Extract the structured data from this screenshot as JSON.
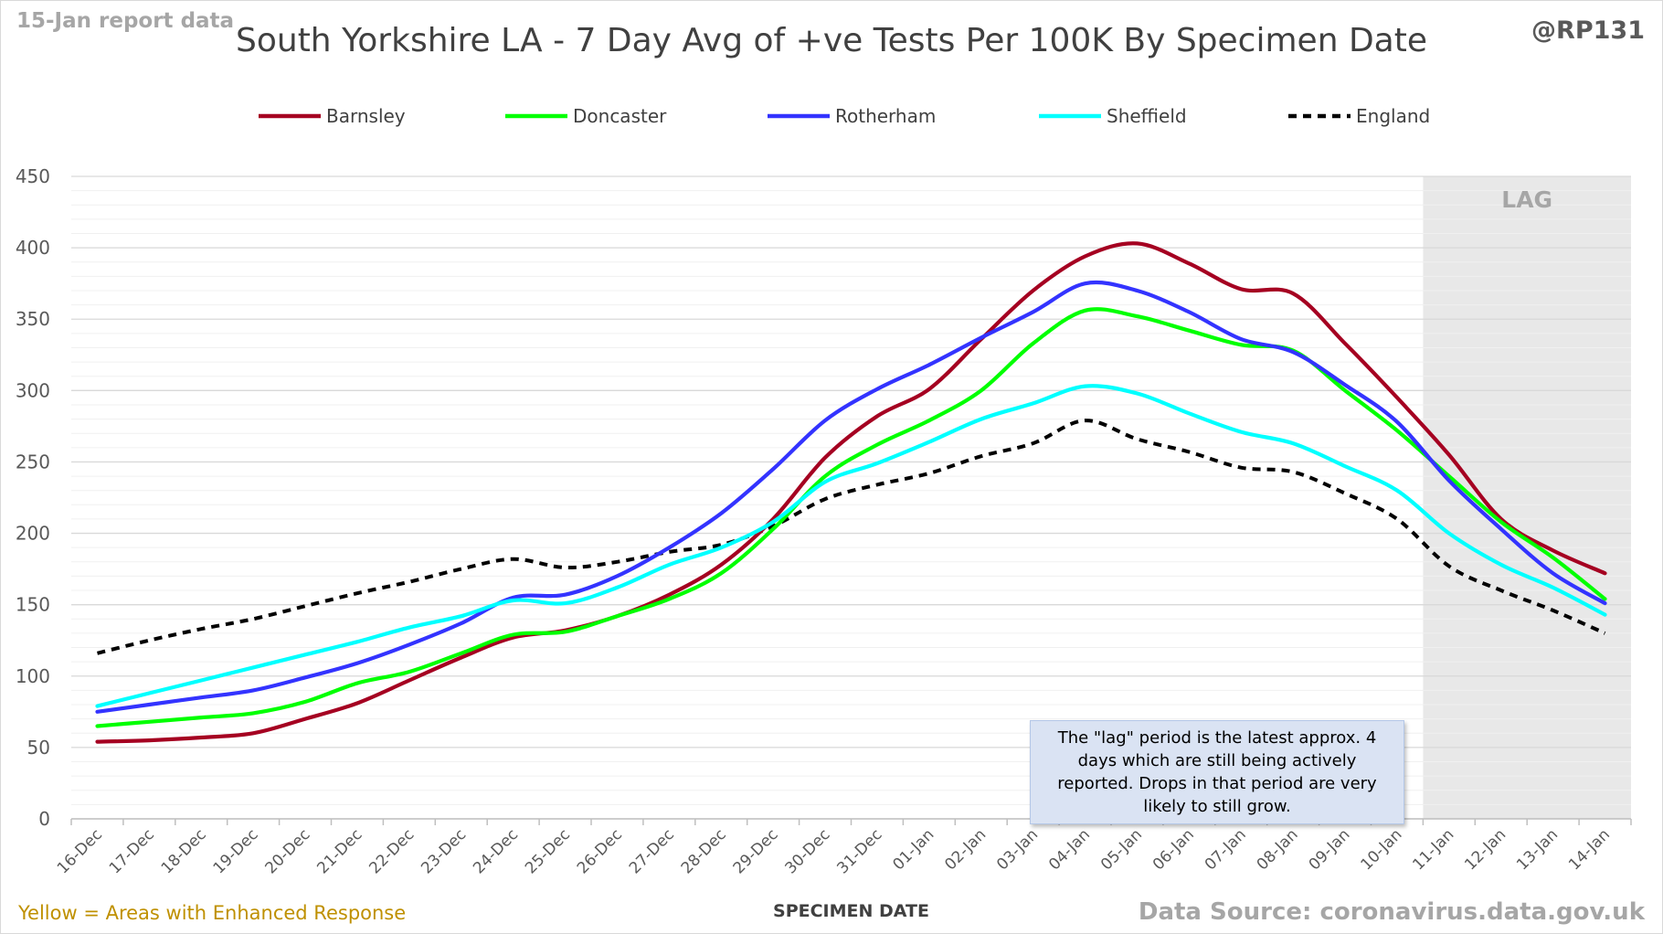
{
  "header": {
    "report_label": "15-Jan report data",
    "author_handle": "@RP131",
    "title": "South Yorkshire LA - 7 Day Avg of +ve Tests Per 100K By Specimen Date"
  },
  "footer": {
    "enhanced_note": "Yellow = Areas with Enhanced Response",
    "source": "Data Source: coronavirus.data.gov.uk"
  },
  "annotation": {
    "lag_note": "The \"lag\" period is the latest approx. 4 days which are still being actively reported. Drops in that period are very likely to still grow."
  },
  "colors": {
    "Barnsley": "#a50021",
    "Doncaster": "#00ff00",
    "Rotherham": "#3333ff",
    "Sheffield": "#00ffff",
    "England": "#000000",
    "lag_shade": "#e8e8e8",
    "grid_major": "#d9d9d9",
    "grid_minor": "#f0f0f0"
  },
  "chart_data": {
    "type": "line",
    "title": "South Yorkshire LA - 7 Day Avg of +ve Tests Per 100K By Specimen Date",
    "xlabel": "SPECIMEN DATE",
    "ylabel": "",
    "ylim": [
      0,
      450
    ],
    "yticks": [
      0,
      50,
      100,
      150,
      200,
      250,
      300,
      350,
      400,
      450
    ],
    "grid": true,
    "legend_position": "top",
    "lag_region": {
      "label": "LAG",
      "from": "11-Jan",
      "to": "14-Jan"
    },
    "x": [
      "16-Dec",
      "17-Dec",
      "18-Dec",
      "19-Dec",
      "20-Dec",
      "21-Dec",
      "22-Dec",
      "23-Dec",
      "24-Dec",
      "25-Dec",
      "26-Dec",
      "27-Dec",
      "28-Dec",
      "29-Dec",
      "30-Dec",
      "31-Dec",
      "01-Jan",
      "02-Jan",
      "03-Jan",
      "04-Jan",
      "05-Jan",
      "06-Jan",
      "07-Jan",
      "08-Jan",
      "09-Jan",
      "10-Jan",
      "11-Jan",
      "12-Jan",
      "13-Jan",
      "14-Jan"
    ],
    "series": [
      {
        "name": "Barnsley",
        "dashed": false,
        "values": [
          54,
          55,
          57,
          60,
          70,
          81,
          97,
          113,
          127,
          132,
          142,
          157,
          178,
          210,
          253,
          282,
          301,
          336,
          370,
          394,
          403,
          389,
          371,
          368,
          333,
          295,
          255,
          210,
          188,
          172
        ]
      },
      {
        "name": "Doncaster",
        "dashed": false,
        "values": [
          65,
          68,
          71,
          74,
          82,
          95,
          103,
          116,
          129,
          131,
          142,
          154,
          172,
          203,
          240,
          262,
          279,
          300,
          333,
          356,
          352,
          342,
          332,
          328,
          300,
          272,
          240,
          208,
          183,
          154
        ]
      },
      {
        "name": "Rotherham",
        "dashed": false,
        "values": [
          75,
          80,
          85,
          90,
          99,
          109,
          122,
          137,
          155,
          157,
          170,
          190,
          214,
          245,
          279,
          301,
          318,
          337,
          355,
          375,
          370,
          355,
          336,
          327,
          304,
          278,
          237,
          203,
          172,
          151
        ]
      },
      {
        "name": "Sheffield",
        "dashed": false,
        "values": [
          79,
          88,
          97,
          106,
          115,
          124,
          134,
          142,
          153,
          151,
          162,
          178,
          190,
          208,
          236,
          249,
          264,
          280,
          291,
          303,
          298,
          284,
          271,
          263,
          247,
          230,
          200,
          178,
          162,
          143
        ]
      },
      {
        "name": "England",
        "dashed": true,
        "values": [
          116,
          125,
          133,
          140,
          149,
          158,
          166,
          175,
          182,
          176,
          180,
          187,
          192,
          205,
          224,
          234,
          242,
          254,
          263,
          279,
          266,
          257,
          246,
          243,
          228,
          210,
          177,
          160,
          146,
          130
        ]
      }
    ]
  }
}
